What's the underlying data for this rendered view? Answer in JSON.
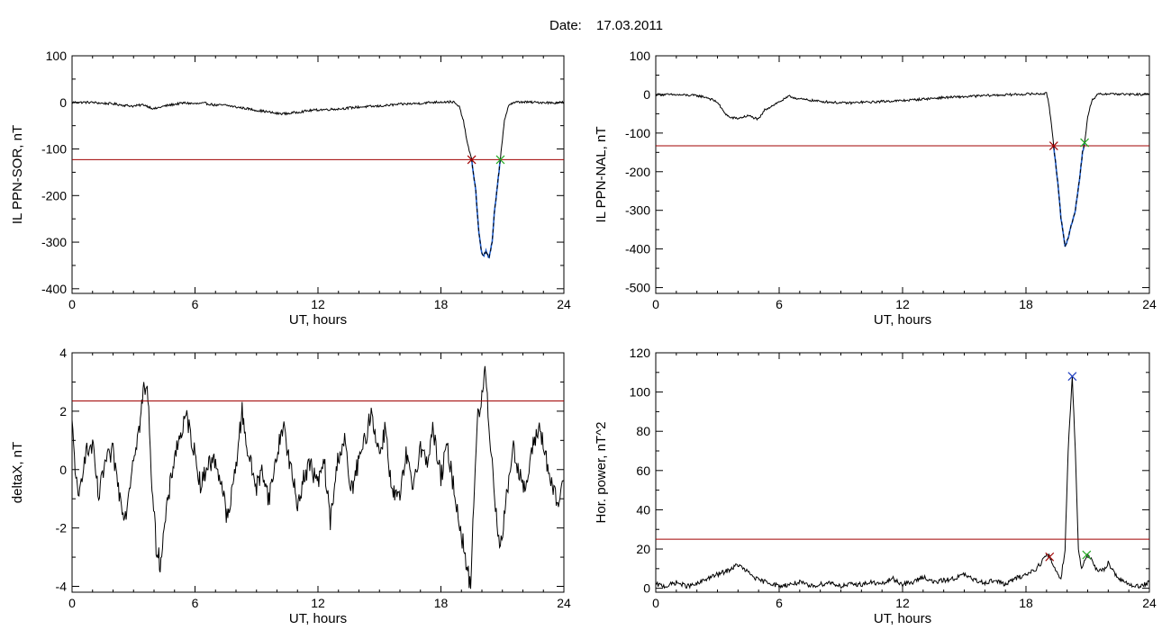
{
  "page": {
    "date_label": "Date:",
    "date_value": "17.03.2011"
  },
  "colors": {
    "axes": "#000000",
    "trace": "#000000",
    "threshold": "#a00000",
    "highlight": "#1f5fd0",
    "start_marker": "#a00000",
    "end_marker": "#22aa22",
    "peak_marker": "#2040c0"
  },
  "chart_data": [
    {
      "id": "p1",
      "type": "line",
      "ylabel": "IL PPN-SOR, nT",
      "xlabel": "UT, hours",
      "xlim": [
        0,
        24
      ],
      "ylim": [
        -410,
        100
      ],
      "xticks": [
        0,
        6,
        12,
        18,
        24
      ],
      "yticks": [
        -400,
        -300,
        -200,
        -100,
        0,
        100
      ],
      "threshold": -123,
      "highlight_range": [
        19.5,
        20.9
      ],
      "markers": [
        {
          "role": "start",
          "x": 19.5,
          "y": -123,
          "color": "#a00000"
        },
        {
          "role": "end",
          "x": 20.9,
          "y": -123,
          "color": "#22aa22"
        }
      ],
      "series": [
        {
          "noise": 2.5,
          "points": [
            [
              0,
              0
            ],
            [
              1,
              0
            ],
            [
              1.5,
              -2
            ],
            [
              2,
              -3
            ],
            [
              2.5,
              -6
            ],
            [
              3,
              -8
            ],
            [
              3.5,
              -5
            ],
            [
              4,
              -14
            ],
            [
              4.5,
              -8
            ],
            [
              5,
              -4
            ],
            [
              5.5,
              -1
            ],
            [
              6,
              -3
            ],
            [
              6.5,
              -2
            ],
            [
              7,
              -6
            ],
            [
              7.5,
              -6
            ],
            [
              8,
              -10
            ],
            [
              8.5,
              -13
            ],
            [
              9,
              -17
            ],
            [
              9.5,
              -20
            ],
            [
              10,
              -24
            ],
            [
              10.5,
              -24
            ],
            [
              11,
              -21
            ],
            [
              11.5,
              -18
            ],
            [
              12,
              -16
            ],
            [
              12.5,
              -15
            ],
            [
              13,
              -14
            ],
            [
              13.5,
              -12
            ],
            [
              14,
              -10
            ],
            [
              14.5,
              -9
            ],
            [
              15,
              -8
            ],
            [
              15.5,
              -6
            ],
            [
              16,
              -4
            ],
            [
              16.5,
              -3
            ],
            [
              17,
              -2
            ],
            [
              17.5,
              0
            ],
            [
              18,
              1
            ],
            [
              18.6,
              1
            ],
            [
              18.9,
              -10
            ],
            [
              19.1,
              -40
            ],
            [
              19.3,
              -90
            ],
            [
              19.5,
              -123
            ],
            [
              19.7,
              -190
            ],
            [
              19.85,
              -280
            ],
            [
              20.0,
              -325
            ],
            [
              20.1,
              -328
            ],
            [
              20.2,
              -320
            ],
            [
              20.35,
              -335
            ],
            [
              20.5,
              -300
            ],
            [
              20.6,
              -240
            ],
            [
              20.8,
              -160
            ],
            [
              20.9,
              -123
            ],
            [
              21.0,
              -80
            ],
            [
              21.1,
              -40
            ],
            [
              21.3,
              -5
            ],
            [
              21.6,
              0
            ],
            [
              22,
              1
            ],
            [
              22.5,
              0
            ],
            [
              23,
              0
            ],
            [
              23.5,
              -1
            ],
            [
              24,
              0
            ]
          ]
        }
      ]
    },
    {
      "id": "p2",
      "type": "line",
      "ylabel": "IL PPN-NAL, nT",
      "xlabel": "UT, hours",
      "xlim": [
        0,
        24
      ],
      "ylim": [
        -515,
        100
      ],
      "xticks": [
        0,
        6,
        12,
        18,
        24
      ],
      "yticks": [
        -500,
        -400,
        -300,
        -200,
        -100,
        0,
        100
      ],
      "threshold": -133,
      "highlight_range": [
        19.35,
        20.85
      ],
      "markers": [
        {
          "role": "start",
          "x": 19.35,
          "y": -133,
          "color": "#a00000"
        },
        {
          "role": "end",
          "x": 20.85,
          "y": -125,
          "color": "#22aa22"
        }
      ],
      "series": [
        {
          "noise": 3,
          "points": [
            [
              0,
              0
            ],
            [
              1,
              -1
            ],
            [
              2,
              -3
            ],
            [
              2.5,
              -8
            ],
            [
              3,
              -20
            ],
            [
              3.3,
              -45
            ],
            [
              3.6,
              -60
            ],
            [
              4,
              -62
            ],
            [
              4.5,
              -55
            ],
            [
              5,
              -65
            ],
            [
              5.3,
              -40
            ],
            [
              5.8,
              -25
            ],
            [
              6.5,
              -5
            ],
            [
              7,
              -12
            ],
            [
              7.5,
              -15
            ],
            [
              8,
              -18
            ],
            [
              8.5,
              -20
            ],
            [
              9,
              -22
            ],
            [
              9.5,
              -22
            ],
            [
              10,
              -20
            ],
            [
              10.5,
              -20
            ],
            [
              11,
              -18
            ],
            [
              11.5,
              -17
            ],
            [
              12,
              -16
            ],
            [
              13,
              -12
            ],
            [
              14,
              -8
            ],
            [
              15,
              -6
            ],
            [
              16,
              -3
            ],
            [
              17,
              -1
            ],
            [
              18,
              1
            ],
            [
              19,
              2
            ],
            [
              19.1,
              -20
            ],
            [
              19.2,
              -60
            ],
            [
              19.35,
              -133
            ],
            [
              19.55,
              -230
            ],
            [
              19.7,
              -320
            ],
            [
              19.9,
              -395
            ],
            [
              20.05,
              -370
            ],
            [
              20.2,
              -340
            ],
            [
              20.4,
              -300
            ],
            [
              20.6,
              -220
            ],
            [
              20.75,
              -150
            ],
            [
              20.85,
              -125
            ],
            [
              21.0,
              -60
            ],
            [
              21.2,
              -15
            ],
            [
              21.5,
              0
            ],
            [
              22,
              2
            ],
            [
              23,
              0
            ],
            [
              24,
              0
            ]
          ]
        }
      ]
    },
    {
      "id": "p3",
      "type": "line",
      "ylabel": "deltaX, nT",
      "xlabel": "UT, hours",
      "xlim": [
        0,
        24
      ],
      "ylim": [
        -4.2,
        4
      ],
      "xticks": [
        0,
        6,
        12,
        18,
        24
      ],
      "yticks": [
        -4,
        -2,
        0,
        2,
        4
      ],
      "threshold": 2.35,
      "markers": [],
      "series": [
        {
          "noise": 0.35,
          "points": [
            [
              0,
              1.5
            ],
            [
              0.3,
              -1.2
            ],
            [
              0.6,
              0.5
            ],
            [
              1,
              0.8
            ],
            [
              1.3,
              -1.0
            ],
            [
              1.6,
              0.2
            ],
            [
              2,
              0.6
            ],
            [
              2.3,
              -0.8
            ],
            [
              2.6,
              -1.6
            ],
            [
              3.0,
              0.5
            ],
            [
              3.3,
              1.5
            ],
            [
              3.5,
              2.8
            ],
            [
              3.7,
              2.6
            ],
            [
              3.9,
              -0.5
            ],
            [
              4.1,
              -2.6
            ],
            [
              4.3,
              -3.2
            ],
            [
              4.6,
              -1.5
            ],
            [
              5,
              0.5
            ],
            [
              5.3,
              1.2
            ],
            [
              5.6,
              1.8
            ],
            [
              6,
              0.5
            ],
            [
              6.3,
              -0.6
            ],
            [
              6.6,
              0.2
            ],
            [
              7,
              0.3
            ],
            [
              7.3,
              -0.5
            ],
            [
              7.6,
              -1.8
            ],
            [
              8,
              0.2
            ],
            [
              8.3,
              2.0
            ],
            [
              8.6,
              0.5
            ],
            [
              9,
              -0.6
            ],
            [
              9.3,
              0.0
            ],
            [
              9.6,
              -1.0
            ],
            [
              10,
              0.5
            ],
            [
              10.3,
              1.6
            ],
            [
              10.6,
              0.3
            ],
            [
              11,
              -1.2
            ],
            [
              11.3,
              -0.3
            ],
            [
              11.6,
              0.2
            ],
            [
              12,
              -0.5
            ],
            [
              12.3,
              0.3
            ],
            [
              12.6,
              -1.8
            ],
            [
              13,
              0.5
            ],
            [
              13.3,
              1.0
            ],
            [
              13.6,
              -0.8
            ],
            [
              14,
              0.3
            ],
            [
              14.3,
              1.0
            ],
            [
              14.6,
              2.0
            ],
            [
              15,
              0.5
            ],
            [
              15.3,
              1.5
            ],
            [
              15.6,
              -0.8
            ],
            [
              16,
              -1.0
            ],
            [
              16.3,
              0.5
            ],
            [
              16.6,
              -0.6
            ],
            [
              17,
              0.8
            ],
            [
              17.3,
              0.2
            ],
            [
              17.6,
              1.4
            ],
            [
              18,
              -0.3
            ],
            [
              18.3,
              0.8
            ],
            [
              18.6,
              -0.5
            ],
            [
              19,
              -2.2
            ],
            [
              19.3,
              -3.5
            ],
            [
              19.45,
              -4.0
            ],
            [
              19.6,
              -1.0
            ],
            [
              19.8,
              1.8
            ],
            [
              20.0,
              2.4
            ],
            [
              20.15,
              3.5
            ],
            [
              20.3,
              2.0
            ],
            [
              20.5,
              0.2
            ],
            [
              20.7,
              -1.5
            ],
            [
              20.9,
              -2.7
            ],
            [
              21.2,
              -1.0
            ],
            [
              21.5,
              0.8
            ],
            [
              21.8,
              0.0
            ],
            [
              22.1,
              -0.8
            ],
            [
              22.5,
              0.8
            ],
            [
              22.8,
              1.5
            ],
            [
              23.1,
              0.5
            ],
            [
              23.4,
              -0.6
            ],
            [
              23.7,
              -1.2
            ],
            [
              24,
              -0.4
            ]
          ]
        }
      ]
    },
    {
      "id": "p4",
      "type": "line",
      "ylabel": "Hor. power, nT^2",
      "xlabel": "UT, hours",
      "xlim": [
        0,
        24
      ],
      "ylim": [
        -2,
        120
      ],
      "xticks": [
        0,
        6,
        12,
        18,
        24
      ],
      "yticks": [
        0,
        20,
        40,
        60,
        80,
        100,
        120
      ],
      "threshold": 25,
      "markers": [
        {
          "role": "start",
          "x": 19.15,
          "y": 16,
          "color": "#a00000"
        },
        {
          "role": "peak",
          "x": 20.25,
          "y": 108,
          "color": "#2040c0"
        },
        {
          "role": "end",
          "x": 20.95,
          "y": 17,
          "color": "#22aa22"
        }
      ],
      "series": [
        {
          "noise": 1.2,
          "floor": 0,
          "points": [
            [
              0,
              2
            ],
            [
              0.5,
              1
            ],
            [
              1,
              3
            ],
            [
              1.5,
              1
            ],
            [
              2,
              2
            ],
            [
              2.5,
              5
            ],
            [
              3,
              7
            ],
            [
              3.5,
              9
            ],
            [
              4,
              12
            ],
            [
              4.5,
              8
            ],
            [
              5,
              4
            ],
            [
              5.5,
              3
            ],
            [
              6,
              1
            ],
            [
              6.5,
              2
            ],
            [
              7,
              3
            ],
            [
              7.5,
              1
            ],
            [
              8,
              2
            ],
            [
              8.5,
              3
            ],
            [
              9,
              1
            ],
            [
              9.5,
              2
            ],
            [
              10,
              2
            ],
            [
              10.5,
              3
            ],
            [
              11,
              2
            ],
            [
              11.5,
              5
            ],
            [
              12,
              2
            ],
            [
              12.5,
              3
            ],
            [
              13,
              6
            ],
            [
              13.5,
              3
            ],
            [
              14,
              4
            ],
            [
              14.5,
              5
            ],
            [
              15,
              7
            ],
            [
              15.5,
              4
            ],
            [
              16,
              3
            ],
            [
              16.5,
              4
            ],
            [
              17,
              2
            ],
            [
              17.5,
              5
            ],
            [
              18,
              7
            ],
            [
              18.5,
              10
            ],
            [
              18.8,
              14
            ],
            [
              19.0,
              17
            ],
            [
              19.15,
              16
            ],
            [
              19.4,
              10
            ],
            [
              19.7,
              5
            ],
            [
              19.9,
              20
            ],
            [
              20.05,
              70
            ],
            [
              20.25,
              108
            ],
            [
              20.4,
              70
            ],
            [
              20.55,
              20
            ],
            [
              20.7,
              10
            ],
            [
              20.95,
              17
            ],
            [
              21.2,
              14
            ],
            [
              21.5,
              8
            ],
            [
              21.8,
              10
            ],
            [
              22,
              13
            ],
            [
              22.3,
              8
            ],
            [
              22.6,
              4
            ],
            [
              23,
              2
            ],
            [
              23.5,
              1
            ],
            [
              24,
              3
            ]
          ]
        }
      ]
    }
  ]
}
